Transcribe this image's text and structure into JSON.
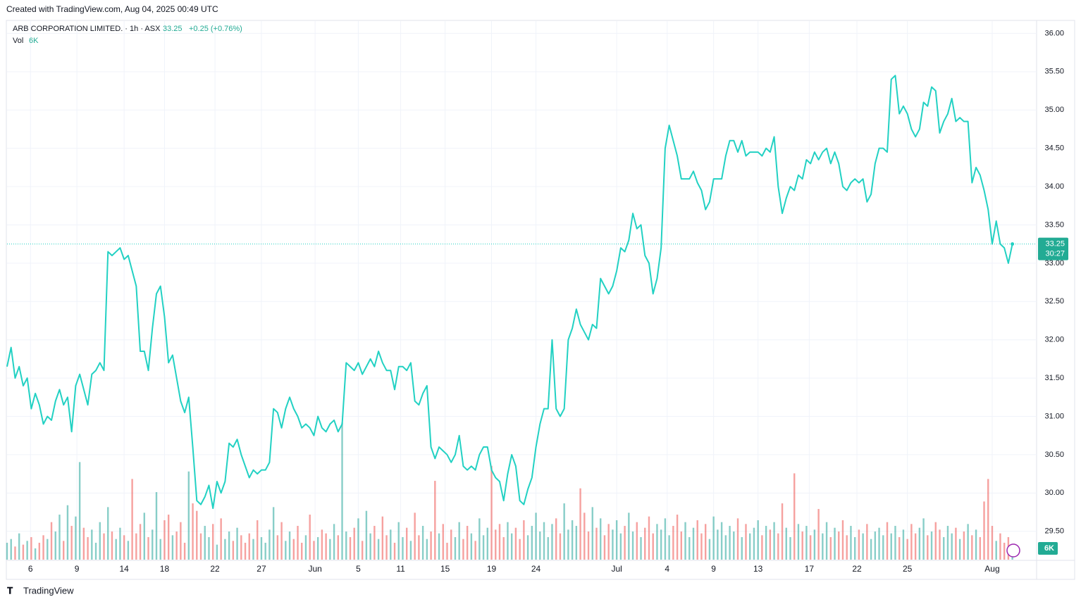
{
  "chart_data": {
    "type": "line",
    "watermark": "Created with TradingView.com, Aug 04, 2025 00:49 UTC",
    "title": "ARB CORPORATION LIMITED. · 1h · ASX",
    "change": "+0.25 (+0.76%)",
    "volume_title": "Vol",
    "last_volume_label": "6K",
    "countdown": "30:27",
    "footer": "TradingView",
    "color": "#22d1c3",
    "up_color": "rgba(38,166,154,0.55)",
    "down_color": "rgba(239,83,80,0.55)",
    "grid": true,
    "ylim": [
      29.13,
      36.16
    ],
    "yticks": [
      {
        "value": 29.5,
        "label": "29.50"
      },
      {
        "value": 30,
        "label": "30.00"
      },
      {
        "value": 30.5,
        "label": "30.50"
      },
      {
        "value": 31,
        "label": "31.00"
      },
      {
        "value": 31.5,
        "label": "31.50"
      },
      {
        "value": 32,
        "label": "32.00"
      },
      {
        "value": 32.5,
        "label": "32.50"
      },
      {
        "value": 33,
        "label": "33.00"
      },
      {
        "value": 33.5,
        "label": "33.50"
      },
      {
        "value": 34,
        "label": "34.00"
      },
      {
        "value": 34.5,
        "label": "34.50"
      },
      {
        "value": 35,
        "label": "35.00"
      },
      {
        "value": 35.5,
        "label": "35.50"
      },
      {
        "value": 36,
        "label": "36.00"
      }
    ],
    "xlim": [
      0,
      255
    ],
    "xticks": [
      {
        "value": 5.8,
        "label": "6"
      },
      {
        "value": 17.3,
        "label": "9"
      },
      {
        "value": 29,
        "label": "14"
      },
      {
        "value": 39,
        "label": "18"
      },
      {
        "value": 51.5,
        "label": "22"
      },
      {
        "value": 63,
        "label": "27"
      },
      {
        "value": 76.3,
        "label": "Jun"
      },
      {
        "value": 87,
        "label": "5"
      },
      {
        "value": 97.5,
        "label": "11"
      },
      {
        "value": 108.5,
        "label": "15"
      },
      {
        "value": 120,
        "label": "19"
      },
      {
        "value": 131,
        "label": "24"
      },
      {
        "value": 151,
        "label": "Jul"
      },
      {
        "value": 163.5,
        "label": "4"
      },
      {
        "value": 175,
        "label": "9"
      },
      {
        "value": 186,
        "label": "13"
      },
      {
        "value": 198.7,
        "label": "17"
      },
      {
        "value": 210.5,
        "label": "22"
      },
      {
        "value": 223,
        "label": "25"
      },
      {
        "value": 244,
        "label": "Aug"
      }
    ],
    "y2lim": [
      0,
      287000
    ],
    "series": [
      {
        "name": "Price",
        "values": [
          31.65,
          31.9,
          31.5,
          31.65,
          31.4,
          31.5,
          31.1,
          31.3,
          31.15,
          30.9,
          31.0,
          30.95,
          31.2,
          31.35,
          31.15,
          31.25,
          30.8,
          31.4,
          31.55,
          31.35,
          31.15,
          31.55,
          31.6,
          31.7,
          31.6,
          33.15,
          33.1,
          33.15,
          33.2,
          33.05,
          33.1,
          32.9,
          32.7,
          31.85,
          31.85,
          31.6,
          32.15,
          32.6,
          32.7,
          32.3,
          31.7,
          31.8,
          31.5,
          31.2,
          31.05,
          31.25,
          30.6,
          29.9,
          29.85,
          29.95,
          30.1,
          29.8,
          30.15,
          30.0,
          30.15,
          30.65,
          30.6,
          30.7,
          30.5,
          30.35,
          30.2,
          30.3,
          30.25,
          30.3,
          30.3,
          30.4,
          31.1,
          31.05,
          30.85,
          31.1,
          31.25,
          31.1,
          31.0,
          30.85,
          30.9,
          30.85,
          30.75,
          31.0,
          30.85,
          30.8,
          30.9,
          30.95,
          30.8,
          30.9,
          31.7,
          31.65,
          31.6,
          31.7,
          31.55,
          31.65,
          31.75,
          31.65,
          31.85,
          31.7,
          31.6,
          31.6,
          31.35,
          31.65,
          31.65,
          31.6,
          31.7,
          31.2,
          31.15,
          31.3,
          31.4,
          30.6,
          30.45,
          30.6,
          30.55,
          30.5,
          30.4,
          30.5,
          30.75,
          30.35,
          30.3,
          30.35,
          30.3,
          30.5,
          30.6,
          30.6,
          30.3,
          30.2,
          30.15,
          29.9,
          30.25,
          30.5,
          30.35,
          29.9,
          29.85,
          30.05,
          30.2,
          30.6,
          30.9,
          31.1,
          31.1,
          32.0,
          31.1,
          31.0,
          31.1,
          32.0,
          32.15,
          32.4,
          32.2,
          32.1,
          32.0,
          32.2,
          32.15,
          32.8,
          32.7,
          32.6,
          32.7,
          32.9,
          33.2,
          33.15,
          33.3,
          33.65,
          33.45,
          33.5,
          33.1,
          33.0,
          32.6,
          32.8,
          33.2,
          34.5,
          34.8,
          34.6,
          34.4,
          34.1,
          34.1,
          34.1,
          34.2,
          34.05,
          33.95,
          33.7,
          33.8,
          34.1,
          34.1,
          34.1,
          34.4,
          34.6,
          34.6,
          34.45,
          34.6,
          34.4,
          34.45,
          34.45,
          34.45,
          34.4,
          34.5,
          34.45,
          34.65,
          34.0,
          33.65,
          33.85,
          34.0,
          33.95,
          34.15,
          34.1,
          34.35,
          34.3,
          34.45,
          34.35,
          34.45,
          34.5,
          34.3,
          34.45,
          34.3,
          34.0,
          33.95,
          34.05,
          34.1,
          34.05,
          34.1,
          33.8,
          33.9,
          34.3,
          34.5,
          34.5,
          34.45,
          35.4,
          35.45,
          34.95,
          35.05,
          34.95,
          34.75,
          34.65,
          34.75,
          35.1,
          35.05,
          35.3,
          35.25,
          34.7,
          34.85,
          34.95,
          35.15,
          34.85,
          34.9,
          34.85,
          34.85,
          34.05,
          34.25,
          34.15,
          33.95,
          33.7,
          33.25,
          33.55,
          33.25,
          33.2,
          33.0,
          33.25
        ]
      },
      {
        "name": "Vol",
        "axis": "y2",
        "values": [
          9000,
          11000,
          7000,
          14000,
          8000,
          10000,
          12000,
          6000,
          9000,
          13000,
          11000,
          20000,
          15000,
          24000,
          10000,
          29000,
          18000,
          23000,
          52000,
          17000,
          12000,
          16000,
          9000,
          20000,
          14000,
          28000,
          15000,
          11000,
          17000,
          13000,
          10000,
          43000,
          14000,
          19000,
          25000,
          12000,
          16000,
          36000,
          11000,
          21000,
          24000,
          13000,
          15000,
          20000,
          9000,
          47000,
          30000,
          26000,
          14000,
          18000,
          12000,
          19000,
          8000,
          22000,
          11000,
          15000,
          10000,
          17000,
          13000,
          9000,
          14000,
          11000,
          21000,
          12000,
          9000,
          16000,
          28000,
          13000,
          20000,
          10000,
          15000,
          11000,
          18000,
          9000,
          13000,
          24000,
          10000,
          12000,
          16000,
          14000,
          11000,
          19000,
          13000,
          73000,
          15000,
          12000,
          17000,
          22000,
          10000,
          26000,
          14000,
          18000,
          11000,
          23000,
          13000,
          16000,
          9000,
          20000,
          12000,
          17000,
          10000,
          25000,
          13000,
          18000,
          11000,
          15000,
          42000,
          14000,
          19000,
          9000,
          16000,
          12000,
          20000,
          11000,
          18000,
          14000,
          10000,
          22000,
          13000,
          17000,
          50000,
          16000,
          19000,
          12000,
          20000,
          14000,
          17000,
          11000,
          21000,
          13000,
          18000,
          25000,
          15000,
          20000,
          12000,
          19000,
          22000,
          14000,
          30000,
          16000,
          21000,
          18000,
          38000,
          25000,
          15000,
          28000,
          17000,
          22000,
          13000,
          19000,
          16000,
          21000,
          14000,
          18000,
          25000,
          15000,
          20000,
          12000,
          17000,
          23000,
          14000,
          19000,
          16000,
          22000,
          13000,
          18000,
          24000,
          15000,
          20000,
          12000,
          17000,
          21000,
          14000,
          19000,
          11000,
          23000,
          16000,
          20000,
          13000,
          18000,
          15000,
          22000,
          12000,
          19000,
          14000,
          17000,
          21000,
          13000,
          18000,
          16000,
          20000,
          14000,
          30000,
          17000,
          12000,
          46000,
          19000,
          15000,
          18000,
          13000,
          16000,
          27000,
          14000,
          20000,
          12000,
          17000,
          15000,
          21000,
          13000,
          18000,
          12000,
          16000,
          14000,
          19000,
          11000,
          15000,
          17000,
          13000,
          20000,
          14000,
          18000,
          12000,
          16000,
          11000,
          19000,
          14000,
          17000,
          22000,
          13000,
          15000,
          20000,
          16000,
          12000,
          18000,
          14000,
          17000,
          11000,
          15000,
          19000,
          13000,
          16000,
          12000,
          31000,
          43000,
          18000,
          10000,
          14000,
          9000,
          12000,
          6000
        ]
      }
    ]
  }
}
